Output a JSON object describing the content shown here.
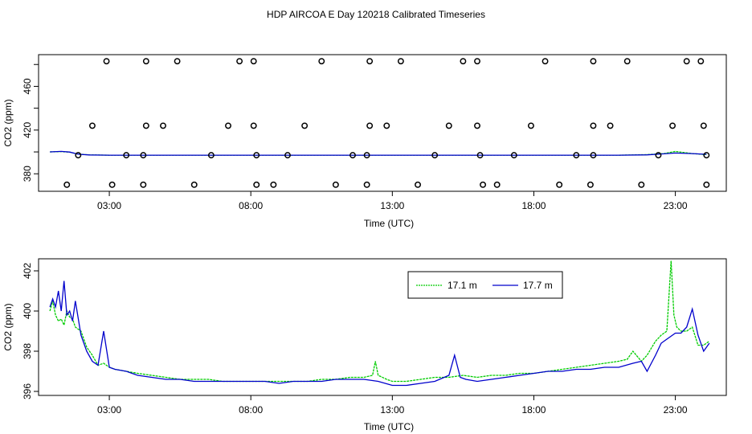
{
  "title": "HDP AIRCOA E  Day 120218  Calibrated Timeseries",
  "chart_data": [
    {
      "type": "scatter",
      "xlabel": "Time (UTC)",
      "ylabel": "CO2 (ppm)",
      "xticks": [
        "03:00",
        "08:00",
        "13:00",
        "18:00",
        "23:00"
      ],
      "xtick_values": [
        3,
        8,
        13,
        18,
        23
      ],
      "yticks": [
        380,
        420,
        460
      ],
      "ytick_values": [
        380,
        420,
        460
      ],
      "xlim": [
        0.5,
        24.8
      ],
      "ylim": [
        364,
        489
      ],
      "series_colors": {
        "17.1 m": "#00cc00",
        "17.7 m": "#0000cc",
        "points": "#000000"
      },
      "calibration_points": [
        {
          "x": 1.5,
          "y": 370
        },
        {
          "x": 1.9,
          "y": 397
        },
        {
          "x": 2.4,
          "y": 424
        },
        {
          "x": 2.9,
          "y": 483
        },
        {
          "x": 3.1,
          "y": 370
        },
        {
          "x": 3.6,
          "y": 397
        },
        {
          "x": 4.2,
          "y": 370
        },
        {
          "x": 4.2,
          "y": 397
        },
        {
          "x": 4.3,
          "y": 424
        },
        {
          "x": 4.3,
          "y": 483
        },
        {
          "x": 4.9,
          "y": 424
        },
        {
          "x": 5.4,
          "y": 483
        },
        {
          "x": 6.0,
          "y": 370
        },
        {
          "x": 6.6,
          "y": 397
        },
        {
          "x": 7.2,
          "y": 424
        },
        {
          "x": 7.6,
          "y": 483
        },
        {
          "x": 8.1,
          "y": 424
        },
        {
          "x": 8.1,
          "y": 483
        },
        {
          "x": 8.2,
          "y": 370
        },
        {
          "x": 8.2,
          "y": 397
        },
        {
          "x": 8.8,
          "y": 370
        },
        {
          "x": 9.3,
          "y": 397
        },
        {
          "x": 9.9,
          "y": 424
        },
        {
          "x": 10.5,
          "y": 483
        },
        {
          "x": 11.0,
          "y": 370
        },
        {
          "x": 11.6,
          "y": 397
        },
        {
          "x": 12.1,
          "y": 370
        },
        {
          "x": 12.1,
          "y": 397
        },
        {
          "x": 12.2,
          "y": 424
        },
        {
          "x": 12.2,
          "y": 483
        },
        {
          "x": 12.8,
          "y": 424
        },
        {
          "x": 13.3,
          "y": 483
        },
        {
          "x": 13.9,
          "y": 370
        },
        {
          "x": 14.5,
          "y": 397
        },
        {
          "x": 15.0,
          "y": 424
        },
        {
          "x": 15.5,
          "y": 483
        },
        {
          "x": 16.0,
          "y": 483
        },
        {
          "x": 16.0,
          "y": 424
        },
        {
          "x": 16.1,
          "y": 397
        },
        {
          "x": 16.2,
          "y": 370
        },
        {
          "x": 16.7,
          "y": 370
        },
        {
          "x": 17.3,
          "y": 397
        },
        {
          "x": 17.9,
          "y": 424
        },
        {
          "x": 18.4,
          "y": 483
        },
        {
          "x": 18.9,
          "y": 370
        },
        {
          "x": 19.5,
          "y": 397
        },
        {
          "x": 20.0,
          "y": 370
        },
        {
          "x": 20.1,
          "y": 397
        },
        {
          "x": 20.1,
          "y": 424
        },
        {
          "x": 20.1,
          "y": 483
        },
        {
          "x": 20.7,
          "y": 424
        },
        {
          "x": 21.3,
          "y": 483
        },
        {
          "x": 21.8,
          "y": 370
        },
        {
          "x": 22.4,
          "y": 397
        },
        {
          "x": 22.9,
          "y": 424
        },
        {
          "x": 23.4,
          "y": 483
        },
        {
          "x": 23.9,
          "y": 483
        },
        {
          "x": 24.0,
          "y": 424
        },
        {
          "x": 24.1,
          "y": 397
        },
        {
          "x": 24.1,
          "y": 370
        }
      ],
      "series": [
        {
          "x": [
            0.9,
            1.3,
            1.6,
            1.9,
            2.3,
            3.0,
            5.0,
            8.0,
            11.0,
            13.0,
            16.0,
            19.0,
            21.0,
            22.0,
            22.6,
            23.0,
            23.6,
            24.1
          ],
          "y": [
            400.0,
            400.3,
            399.8,
            398.0,
            397.3,
            397.0,
            397.0,
            397.0,
            397.0,
            397.0,
            397.0,
            397.0,
            397.0,
            397.5,
            398.5,
            400.5,
            398.5,
            397.5
          ]
        },
        {
          "x": [
            0.9,
            1.3,
            1.6,
            1.9,
            2.3,
            3.0,
            5.0,
            8.0,
            11.0,
            13.0,
            16.0,
            19.0,
            21.0,
            22.0,
            22.6,
            23.0,
            23.6,
            24.1
          ],
          "y": [
            400.0,
            400.5,
            399.9,
            397.9,
            397.2,
            397.0,
            397.0,
            397.0,
            397.0,
            397.0,
            397.0,
            397.0,
            397.0,
            397.3,
            398.3,
            399.0,
            398.5,
            397.8
          ]
        }
      ]
    },
    {
      "type": "line",
      "xlabel": "Time (UTC)",
      "ylabel": "CO2 (ppm)",
      "xticks": [
        "03:00",
        "08:00",
        "13:00",
        "18:00",
        "23:00"
      ],
      "xtick_values": [
        3,
        8,
        13,
        18,
        23
      ],
      "yticks": [
        "396",
        "398",
        "400",
        "402"
      ],
      "ytick_values": [
        396,
        398,
        400,
        402
      ],
      "xlim": [
        0.5,
        24.8
      ],
      "ylim": [
        395.8,
        402.6
      ],
      "legend": "top-right",
      "series": [
        {
          "name": "17.1 m",
          "color": "#00cc00",
          "x": [
            0.9,
            1.0,
            1.1,
            1.2,
            1.3,
            1.4,
            1.5,
            1.6,
            1.7,
            1.8,
            2.0,
            2.2,
            2.4,
            2.6,
            2.8,
            3.0,
            3.2,
            3.6,
            4.0,
            4.5,
            5.0,
            5.5,
            6.0,
            6.5,
            7.0,
            7.5,
            8.0,
            8.5,
            9.0,
            9.5,
            10.0,
            10.5,
            11.0,
            11.5,
            12.0,
            12.3,
            12.4,
            12.5,
            12.8,
            13.0,
            13.5,
            14.0,
            14.5,
            15.0,
            15.5,
            16.0,
            16.5,
            17.0,
            17.5,
            18.0,
            18.5,
            19.0,
            19.5,
            20.0,
            20.5,
            21.0,
            21.3,
            21.5,
            21.8,
            22.0,
            22.3,
            22.5,
            22.7,
            22.85,
            22.95,
            23.05,
            23.2,
            23.4,
            23.6,
            23.8,
            24.0,
            24.2
          ],
          "y": [
            400.0,
            400.5,
            399.8,
            399.5,
            399.6,
            399.3,
            400.0,
            399.7,
            399.6,
            399.2,
            399.0,
            398.2,
            397.8,
            397.3,
            397.4,
            397.2,
            397.1,
            397.0,
            396.9,
            396.8,
            396.7,
            396.6,
            396.6,
            396.6,
            396.5,
            396.5,
            396.5,
            396.5,
            396.5,
            396.5,
            396.5,
            396.6,
            396.6,
            396.7,
            396.7,
            396.8,
            397.5,
            396.8,
            396.6,
            396.5,
            396.5,
            396.6,
            396.7,
            396.7,
            396.8,
            396.7,
            396.8,
            396.8,
            396.9,
            396.9,
            397.0,
            397.1,
            397.2,
            397.3,
            397.4,
            397.5,
            397.6,
            398.0,
            397.5,
            397.8,
            398.5,
            398.8,
            399.0,
            402.5,
            399.8,
            399.2,
            399.0,
            399.0,
            399.2,
            398.3,
            398.3,
            398.5
          ]
        },
        {
          "name": "17.7 m",
          "color": "#0000cc",
          "x": [
            0.9,
            1.0,
            1.1,
            1.2,
            1.3,
            1.4,
            1.5,
            1.6,
            1.7,
            1.8,
            2.0,
            2.2,
            2.4,
            2.6,
            2.8,
            3.0,
            3.2,
            3.6,
            4.0,
            4.5,
            5.0,
            5.5,
            6.0,
            6.5,
            7.0,
            7.5,
            8.0,
            8.5,
            9.0,
            9.5,
            10.0,
            10.5,
            11.0,
            11.5,
            12.0,
            12.5,
            13.0,
            13.5,
            14.0,
            14.5,
            15.0,
            15.2,
            15.4,
            15.6,
            16.0,
            16.5,
            17.0,
            17.5,
            18.0,
            18.5,
            19.0,
            19.5,
            20.0,
            20.5,
            21.0,
            21.5,
            21.8,
            22.0,
            22.3,
            22.5,
            22.7,
            23.0,
            23.2,
            23.4,
            23.6,
            23.8,
            24.0,
            24.2
          ],
          "y": [
            400.2,
            400.6,
            400.2,
            401.0,
            400.0,
            401.5,
            399.8,
            400.0,
            399.5,
            400.5,
            398.8,
            398.0,
            397.5,
            397.3,
            399.0,
            397.2,
            397.1,
            397.0,
            396.8,
            396.7,
            396.6,
            396.6,
            396.5,
            396.5,
            396.5,
            396.5,
            396.5,
            396.5,
            396.4,
            396.5,
            396.5,
            396.5,
            396.6,
            396.6,
            396.6,
            396.5,
            396.3,
            396.3,
            396.4,
            396.5,
            396.8,
            397.8,
            396.7,
            396.6,
            396.5,
            396.6,
            396.7,
            396.8,
            396.9,
            397.0,
            397.0,
            397.1,
            397.1,
            397.2,
            397.2,
            397.4,
            397.5,
            397.0,
            397.8,
            398.4,
            398.6,
            398.9,
            398.9,
            399.2,
            400.1,
            398.8,
            398.0,
            398.4
          ]
        }
      ]
    }
  ]
}
